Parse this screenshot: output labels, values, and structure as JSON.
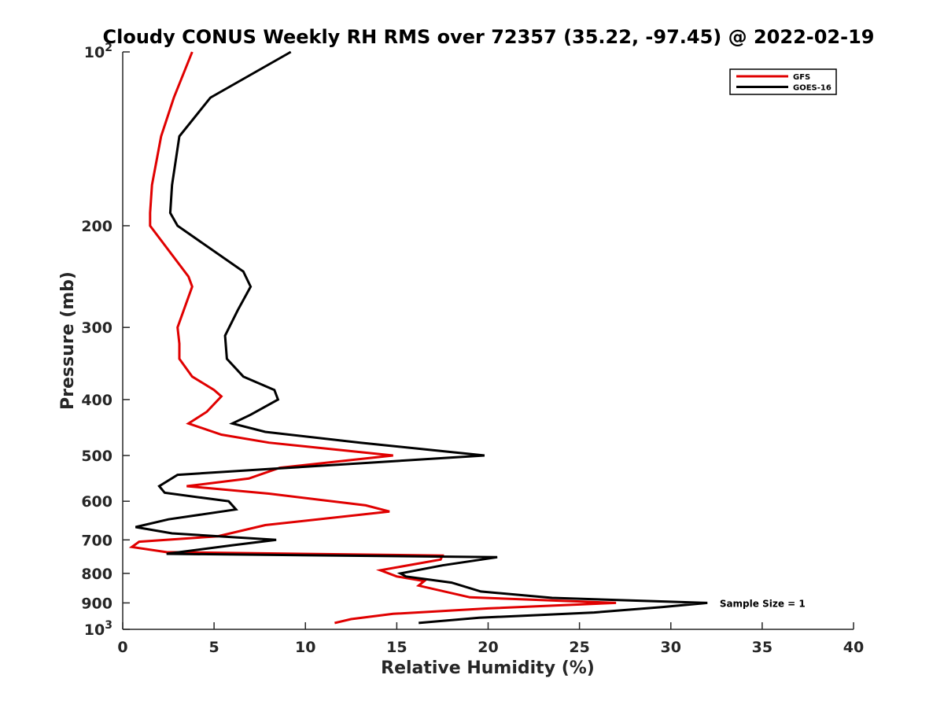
{
  "chart_data": {
    "type": "line",
    "title": "Cloudy CONUS Weekly RH RMS over 72357 (35.22, -97.45) @ 2022-02-19",
    "xlabel": "Relative Humidity (%)",
    "ylabel": "Pressure (mb)",
    "xlim": [
      0,
      40
    ],
    "ylim": [
      1000,
      100
    ],
    "yscale": "log",
    "y_reversed": true,
    "grid": false,
    "legend_position": "top-right",
    "x_ticks": [
      0,
      5,
      10,
      15,
      20,
      25,
      30,
      35,
      40
    ],
    "x_tick_labels": [
      "0",
      "5",
      "10",
      "15",
      "20",
      "25",
      "30",
      "35",
      "40"
    ],
    "y_ticks": [
      100,
      200,
      300,
      400,
      500,
      600,
      700,
      800,
      900,
      1000
    ],
    "y_tick_labels": [
      {
        "base": "10",
        "exp": "2"
      },
      {
        "base": "200",
        "exp": ""
      },
      {
        "base": "300",
        "exp": ""
      },
      {
        "base": "400",
        "exp": ""
      },
      {
        "base": "500",
        "exp": ""
      },
      {
        "base": "600",
        "exp": ""
      },
      {
        "base": "700",
        "exp": ""
      },
      {
        "base": "800",
        "exp": ""
      },
      {
        "base": "900",
        "exp": ""
      },
      {
        "base": "10",
        "exp": "3"
      }
    ],
    "annotation": {
      "text": "Sample Size = 1",
      "x": 32.5,
      "y": 900
    },
    "series": [
      {
        "name": "GFS",
        "color": "#e00000",
        "points": [
          [
            3.8,
            100
          ],
          [
            2.8,
            120
          ],
          [
            2.1,
            140
          ],
          [
            1.6,
            170
          ],
          [
            1.5,
            190
          ],
          [
            1.5,
            200
          ],
          [
            3.6,
            245
          ],
          [
            3.8,
            255
          ],
          [
            3.0,
            300
          ],
          [
            3.1,
            320
          ],
          [
            3.1,
            340
          ],
          [
            3.8,
            365
          ],
          [
            5.0,
            385
          ],
          [
            5.4,
            395
          ],
          [
            4.6,
            420
          ],
          [
            3.6,
            440
          ],
          [
            5.4,
            460
          ],
          [
            8.0,
            475
          ],
          [
            14.8,
            500
          ],
          [
            8.6,
            525
          ],
          [
            6.9,
            548
          ],
          [
            3.5,
            565
          ],
          [
            8.0,
            582
          ],
          [
            13.3,
            610
          ],
          [
            14.6,
            625
          ],
          [
            7.8,
            660
          ],
          [
            5.2,
            690
          ],
          [
            0.9,
            705
          ],
          [
            0.5,
            720
          ],
          [
            2.4,
            735
          ],
          [
            17.5,
            745
          ],
          [
            17.4,
            757
          ],
          [
            14.1,
            790
          ],
          [
            15.0,
            810
          ],
          [
            16.5,
            825
          ],
          [
            16.2,
            840
          ],
          [
            19.0,
            880
          ],
          [
            27.0,
            900
          ],
          [
            20.0,
            920
          ],
          [
            14.8,
            940
          ],
          [
            12.5,
            960
          ],
          [
            11.6,
            975
          ]
        ]
      },
      {
        "name": "GOES-16",
        "color": "#000000",
        "points": [
          [
            9.2,
            100
          ],
          [
            4.8,
            120
          ],
          [
            3.1,
            140
          ],
          [
            2.7,
            170
          ],
          [
            2.6,
            190
          ],
          [
            3.0,
            200
          ],
          [
            6.6,
            240
          ],
          [
            7.0,
            255
          ],
          [
            6.3,
            280
          ],
          [
            5.6,
            310
          ],
          [
            5.7,
            340
          ],
          [
            6.6,
            365
          ],
          [
            8.3,
            385
          ],
          [
            8.5,
            400
          ],
          [
            7.0,
            425
          ],
          [
            6.0,
            440
          ],
          [
            7.8,
            455
          ],
          [
            13.0,
            475
          ],
          [
            19.8,
            500
          ],
          [
            8.3,
            527
          ],
          [
            3.0,
            540
          ],
          [
            2.0,
            565
          ],
          [
            2.3,
            580
          ],
          [
            5.8,
            600
          ],
          [
            6.2,
            620
          ],
          [
            2.5,
            645
          ],
          [
            0.7,
            665
          ],
          [
            2.7,
            682
          ],
          [
            8.4,
            700
          ],
          [
            6.0,
            715
          ],
          [
            2.4,
            740
          ],
          [
            20.5,
            750
          ],
          [
            17.5,
            775
          ],
          [
            15.2,
            800
          ],
          [
            15.5,
            810
          ],
          [
            18.0,
            830
          ],
          [
            19.6,
            860
          ],
          [
            23.5,
            882
          ],
          [
            32.0,
            900
          ],
          [
            29.5,
            915
          ],
          [
            25.8,
            935
          ],
          [
            19.5,
            955
          ],
          [
            16.2,
            975
          ]
        ]
      }
    ]
  }
}
